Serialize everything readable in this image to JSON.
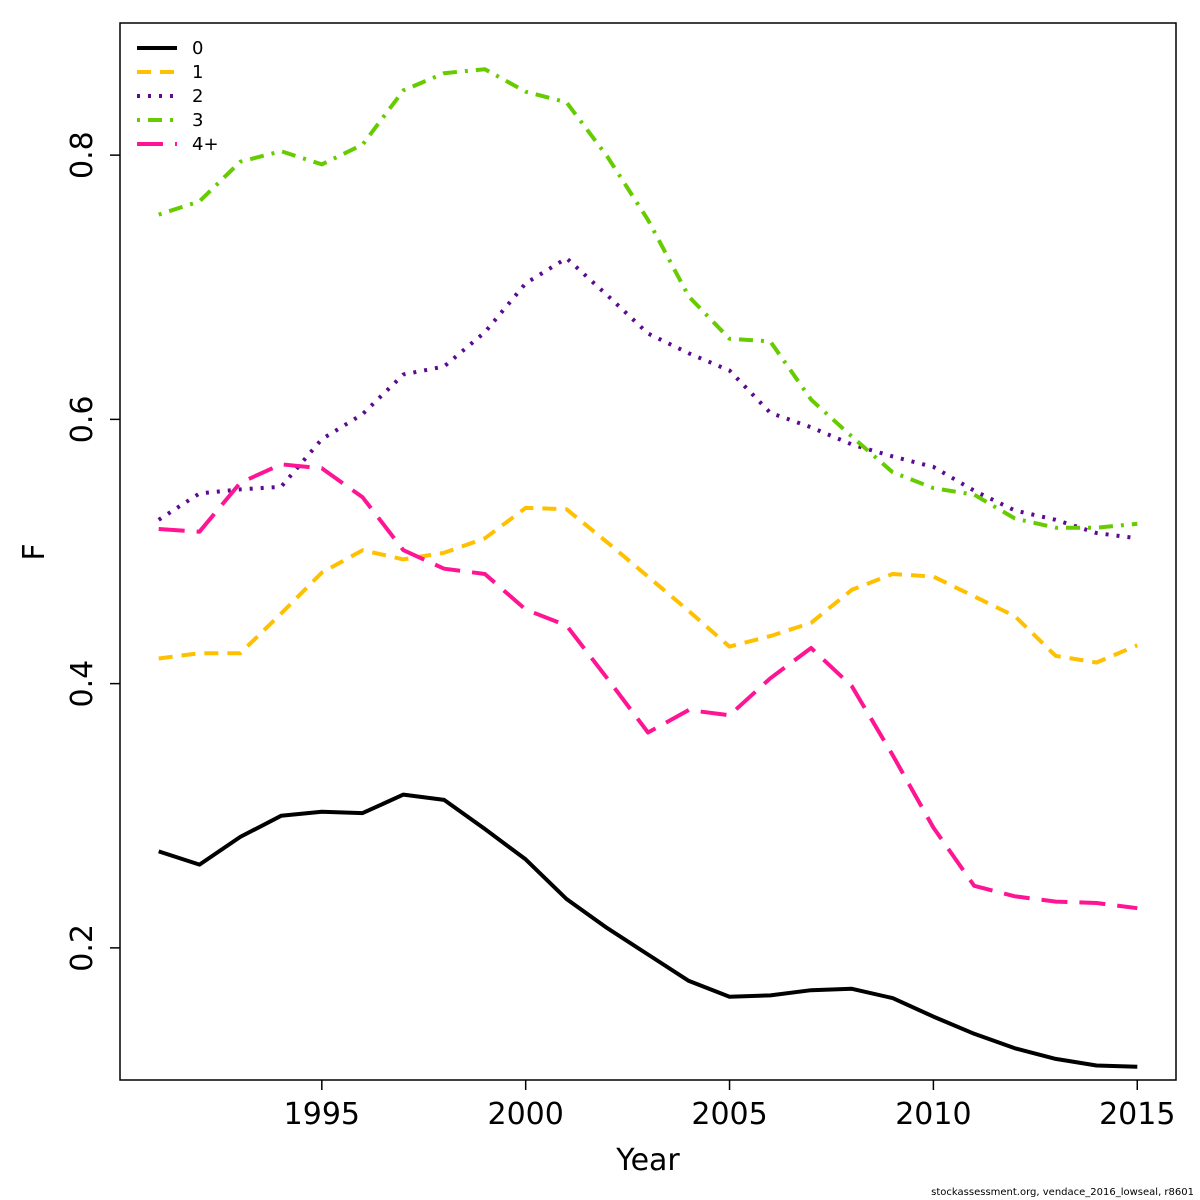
{
  "chart_data": {
    "type": "line",
    "title": "",
    "xlabel": "Year",
    "ylabel": "F",
    "xlim": [
      1990.05,
      2015.95
    ],
    "ylim": [
      0.1,
      0.9
    ],
    "x_ticks": [
      1995,
      2000,
      2005,
      2010,
      2015
    ],
    "y_ticks": [
      0.2,
      0.4,
      0.6,
      0.8
    ],
    "grid": false,
    "legend_position": "top-left",
    "x": [
      1991,
      1992,
      1993,
      1994,
      1995,
      1996,
      1997,
      1998,
      1999,
      2000,
      2001,
      2002,
      2003,
      2004,
      2005,
      2006,
      2007,
      2008,
      2009,
      2010,
      2011,
      2012,
      2013,
      2014,
      2015
    ],
    "series": [
      {
        "name": "0",
        "color": "#000000",
        "dash": "solid",
        "values": [
          0.273,
          0.263,
          0.284,
          0.3,
          0.303,
          0.302,
          0.316,
          0.312,
          0.29,
          0.267,
          0.237,
          0.215,
          0.195,
          0.175,
          0.163,
          0.164,
          0.168,
          0.169,
          0.162,
          0.148,
          0.135,
          0.124,
          0.116,
          0.111,
          0.11
        ]
      },
      {
        "name": "1",
        "color": "#FFC000",
        "dash": "dashed",
        "values": [
          0.419,
          0.423,
          0.423,
          0.453,
          0.484,
          0.501,
          0.494,
          0.499,
          0.51,
          0.533,
          0.532,
          0.507,
          0.481,
          0.455,
          0.428,
          0.436,
          0.446,
          0.471,
          0.483,
          0.481,
          0.466,
          0.451,
          0.421,
          0.416,
          0.429
        ]
      },
      {
        "name": "2",
        "color": "#5B0A91",
        "dash": "dotted",
        "values": [
          0.524,
          0.544,
          0.547,
          0.549,
          0.585,
          0.604,
          0.634,
          0.64,
          0.666,
          0.703,
          0.722,
          0.694,
          0.665,
          0.65,
          0.637,
          0.605,
          0.594,
          0.581,
          0.572,
          0.564,
          0.546,
          0.531,
          0.524,
          0.514,
          0.51
        ]
      },
      {
        "name": "3",
        "color": "#66CC00",
        "dash": "dotdash",
        "values": [
          0.755,
          0.765,
          0.795,
          0.803,
          0.793,
          0.808,
          0.849,
          0.862,
          0.865,
          0.848,
          0.84,
          0.799,
          0.751,
          0.693,
          0.661,
          0.659,
          0.615,
          0.587,
          0.56,
          0.548,
          0.543,
          0.525,
          0.518,
          0.518,
          0.521
        ]
      },
      {
        "name": "4+",
        "color": "#FF1493",
        "dash": "longdash",
        "values": [
          0.517,
          0.515,
          0.552,
          0.566,
          0.563,
          0.541,
          0.501,
          0.487,
          0.483,
          0.456,
          0.444,
          0.404,
          0.363,
          0.38,
          0.376,
          0.404,
          0.427,
          0.398,
          0.346,
          0.291,
          0.247,
          0.239,
          0.235,
          0.234,
          0.23
        ]
      }
    ]
  },
  "footer_text": "stockassessment.org, vendace_2016_lowseal, r8601"
}
